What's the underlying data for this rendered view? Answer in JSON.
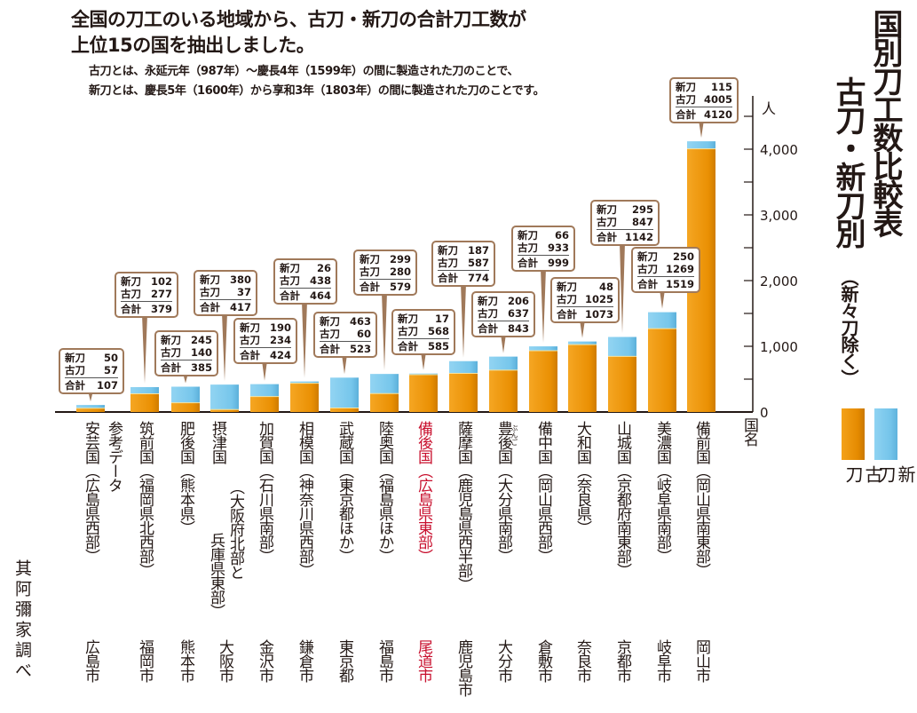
{
  "header": {
    "lead_line1": "全国の刀工のいる地域から、古刀・新刀の合計刀工数が",
    "lead_line2": "上位15の国を抽出しました。",
    "note_line1": "古刀とは、永延元年（987年）〜慶長4年（1599年）の間に製造された刀のことで、",
    "note_line2": "新刀とは、慶長5年（1600年）から享和3年（1803年）の間に製造された刀のことです。",
    "title_line1": "国別刀工数比較表",
    "title_line2": "古刀・新刀別",
    "subtitle": "（新々刀除く）"
  },
  "source": "其阿彌家調べ",
  "colors": {
    "koto": "#ee9405",
    "shinto": "#7ac9ec",
    "callout_border": "#a0795a",
    "highlight": "#c8102e",
    "axis": "#231815"
  },
  "callout_labels": {
    "shinto": "新刀",
    "koto": "古刀",
    "total": "合計"
  },
  "chart_data": {
    "type": "bar",
    "stacked": true,
    "title": "国別刀工数比較表 古刀・新刀別（新々刀除く）",
    "xlabel": "国名",
    "ylabel": "人",
    "ylim": [
      0,
      4500
    ],
    "yticks": [
      0,
      1000,
      2000,
      3000,
      4000
    ],
    "ytick_labels": [
      "0",
      "1,000",
      "2,000",
      "3,000",
      "4,000"
    ],
    "minor_tick_step": 500,
    "legend": {
      "placement": "right",
      "entries": [
        {
          "name": "古刀",
          "color": "#ee9405"
        },
        {
          "name": "新刀",
          "color": "#7ac9ec"
        }
      ]
    },
    "categories": [
      {
        "name": "安芸国（広島県西部）",
        "prefix": "参考データ",
        "city": "広島市",
        "highlight": false
      },
      {
        "name": "筑前国（福岡県北西部）",
        "city": "福岡市",
        "highlight": false
      },
      {
        "name": "肥後国（熊本県）",
        "city": "熊本市",
        "highlight": false
      },
      {
        "name": "摂津国",
        "name_line2": "（大阪府北部と",
        "name_line3": "兵庫県東部）",
        "city": "大阪市",
        "highlight": false
      },
      {
        "name": "加賀国（石川県南部）",
        "city": "金沢市",
        "highlight": false
      },
      {
        "name": "相模国（神奈川県西部）",
        "city": "鎌倉市",
        "highlight": false
      },
      {
        "name": "武蔵国（東京都ほか）",
        "city": "東京都",
        "highlight": false
      },
      {
        "name": "陸奥国（福島県ほか）",
        "city": "福島市",
        "highlight": false
      },
      {
        "name": "備後国（広島県東部）",
        "city": "尾道市",
        "highlight": true
      },
      {
        "name": "薩摩国（鹿児島県西半部）",
        "city": "鹿児島市",
        "highlight": false
      },
      {
        "name": "豊後国（大分県南部）",
        "furigana": "ぶんご",
        "city": "大分市",
        "highlight": false
      },
      {
        "name": "備中国（岡山県西部）",
        "city": "倉敷市",
        "highlight": false
      },
      {
        "name": "大和国（奈良県）",
        "city": "奈良市",
        "highlight": false
      },
      {
        "name": "山城国（京都府南東部）",
        "city": "京都市",
        "highlight": false
      },
      {
        "name": "美濃国（岐阜県南部）",
        "city": "岐阜市",
        "highlight": false
      },
      {
        "name": "備前国（岡山県南東部）",
        "city": "岡山市",
        "highlight": false
      }
    ],
    "series": [
      {
        "name": "古刀",
        "values": [
          57,
          277,
          140,
          37,
          234,
          438,
          60,
          280,
          568,
          587,
          637,
          933,
          1025,
          847,
          1269,
          4005
        ]
      },
      {
        "name": "新刀",
        "values": [
          50,
          102,
          245,
          380,
          190,
          26,
          463,
          299,
          17,
          187,
          206,
          66,
          48,
          295,
          250,
          115
        ]
      }
    ],
    "totals": [
      107,
      379,
      385,
      417,
      424,
      464,
      523,
      579,
      585,
      774,
      843,
      999,
      1073,
      1142,
      1519,
      4120
    ]
  }
}
